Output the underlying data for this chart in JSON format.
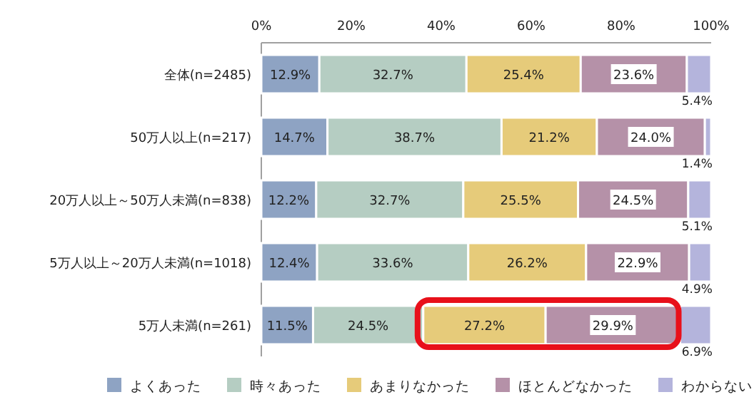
{
  "chart_data": {
    "type": "bar",
    "orientation": "horizontal",
    "stacked": true,
    "categories": [
      "全体(n=2485)",
      "50万人以上(n=217)",
      "20万人以上～50万人未満(n=838)",
      "5万人以上～20万人未満(n=1018)",
      "5万人未満(n=261)"
    ],
    "xlim": [
      0,
      100
    ],
    "xticks": [
      {
        "value": 0,
        "label": "0%"
      },
      {
        "value": 20,
        "label": "20%"
      },
      {
        "value": 40,
        "label": "40%"
      },
      {
        "value": 60,
        "label": "60%"
      },
      {
        "value": 80,
        "label": "80%"
      },
      {
        "value": 100,
        "label": "100%"
      }
    ],
    "legend": "bottom",
    "series": [
      {
        "name": "よくあった",
        "color": "#8ea3c3",
        "values": [
          12.9,
          14.7,
          12.2,
          12.4,
          11.5
        ],
        "value_labels": [
          "12.9%",
          "14.7%",
          "12.2%",
          "12.4%",
          "11.5%"
        ]
      },
      {
        "name": "時々あった",
        "color": "#b5cdc2",
        "values": [
          32.7,
          38.7,
          32.7,
          33.6,
          24.5
        ],
        "value_labels": [
          "32.7%",
          "38.7%",
          "32.7%",
          "33.6%",
          "24.5%"
        ]
      },
      {
        "name": "あまりなかった",
        "color": "#e6cb7a",
        "values": [
          25.4,
          21.2,
          25.5,
          26.2,
          27.2
        ],
        "value_labels": [
          "25.4%",
          "21.2%",
          "25.5%",
          "26.2%",
          "27.2%"
        ]
      },
      {
        "name": "ほとんどなかった",
        "color": "#b591a8",
        "values": [
          23.6,
          24.0,
          24.5,
          22.9,
          29.9
        ],
        "value_labels": [
          "23.6%",
          "24.0%",
          "24.5%",
          "22.9%",
          "29.9%"
        ]
      },
      {
        "name": "わからない",
        "color": "#b4b4dc",
        "values": [
          5.4,
          1.4,
          5.1,
          4.9,
          6.9
        ],
        "value_labels": [
          "5.4%",
          "1.4%",
          "5.1%",
          "4.9%",
          "6.9%"
        ]
      }
    ]
  }
}
